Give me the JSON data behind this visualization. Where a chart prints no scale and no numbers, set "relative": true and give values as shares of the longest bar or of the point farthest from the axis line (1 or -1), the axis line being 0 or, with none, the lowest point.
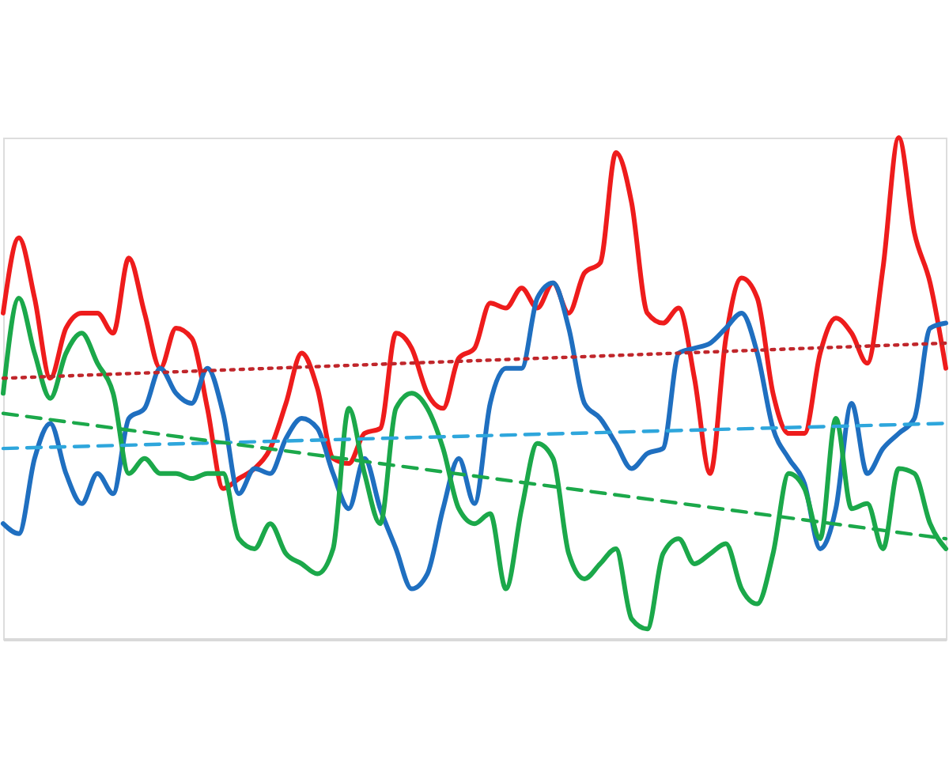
{
  "chart_data": {
    "type": "line",
    "relative": true,
    "line_style": "solid",
    "marker": "none",
    "grid": false,
    "categories": [
      null,
      null,
      null,
      null,
      null,
      null,
      null,
      null,
      null,
      null,
      null,
      null,
      null,
      null,
      null,
      null,
      null,
      null,
      null,
      null,
      null,
      null,
      null,
      null,
      null,
      null,
      null,
      null,
      null,
      null,
      null,
      null,
      null,
      null,
      null,
      null,
      null,
      null,
      null,
      null,
      null,
      null,
      null,
      null,
      null,
      null,
      null,
      null,
      null,
      null,
      null,
      null,
      null,
      null,
      null,
      null,
      null,
      null,
      null,
      null,
      null
    ],
    "series": [
      {
        "color": "#ee1c1c",
        "values": [
          0.65,
          0.8,
          0.68,
          0.52,
          0.62,
          0.65,
          0.65,
          0.61,
          0.76,
          0.65,
          0.54,
          0.62,
          0.6,
          0.46,
          0.3,
          0.32,
          0.34,
          0.38,
          0.47,
          0.57,
          0.5,
          0.36,
          0.35,
          0.41,
          0.42,
          0.61,
          0.58,
          0.49,
          0.46,
          0.56,
          0.58,
          0.67,
          0.66,
          0.7,
          0.66,
          0.71,
          0.65,
          0.73,
          0.75,
          0.97,
          0.87,
          0.65,
          0.63,
          0.66,
          0.52,
          0.33,
          0.6,
          0.72,
          0.68,
          0.49,
          0.41,
          0.41,
          0.57,
          0.64,
          0.61,
          0.55,
          0.74,
          1.0,
          0.81,
          0.71,
          0.54
        ]
      },
      {
        "color": "#1f6fc0",
        "values": [
          0.23,
          0.21,
          0.36,
          0.43,
          0.33,
          0.27,
          0.33,
          0.29,
          0.44,
          0.46,
          0.54,
          0.49,
          0.47,
          0.54,
          0.45,
          0.29,
          0.34,
          0.33,
          0.4,
          0.44,
          0.42,
          0.33,
          0.26,
          0.36,
          0.26,
          0.18,
          0.1,
          0.13,
          0.26,
          0.36,
          0.27,
          0.47,
          0.54,
          0.54,
          0.68,
          0.71,
          0.62,
          0.47,
          0.44,
          0.39,
          0.34,
          0.37,
          0.38,
          0.57,
          0.58,
          0.59,
          0.62,
          0.65,
          0.57,
          0.42,
          0.36,
          0.31,
          0.18,
          0.26,
          0.47,
          0.33,
          0.38,
          0.41,
          0.44,
          0.62,
          0.63
        ]
      },
      {
        "color": "#1ba84a",
        "values": [
          0.49,
          0.68,
          0.57,
          0.48,
          0.57,
          0.61,
          0.55,
          0.49,
          0.33,
          0.36,
          0.33,
          0.33,
          0.32,
          0.33,
          0.33,
          0.2,
          0.18,
          0.23,
          0.17,
          0.15,
          0.13,
          0.18,
          0.46,
          0.33,
          0.23,
          0.46,
          0.49,
          0.46,
          0.38,
          0.26,
          0.23,
          0.25,
          0.1,
          0.26,
          0.39,
          0.36,
          0.17,
          0.12,
          0.15,
          0.18,
          0.04,
          0.02,
          0.17,
          0.2,
          0.15,
          0.17,
          0.19,
          0.1,
          0.07,
          0.17,
          0.33,
          0.3,
          0.2,
          0.44,
          0.26,
          0.27,
          0.18,
          0.34,
          0.33,
          0.23,
          0.18
        ]
      },
      {
        "type": "line",
        "color": "#c0262b",
        "line_style": "dotted",
        "values": [
          0.52,
          null,
          null,
          null,
          null,
          null,
          null,
          null,
          null,
          null,
          null,
          null,
          null,
          null,
          null,
          null,
          null,
          null,
          null,
          null,
          null,
          null,
          null,
          null,
          null,
          null,
          null,
          null,
          null,
          null,
          null,
          null,
          null,
          null,
          null,
          null,
          null,
          null,
          null,
          null,
          null,
          null,
          null,
          null,
          null,
          null,
          null,
          null,
          null,
          null,
          null,
          null,
          null,
          null,
          null,
          null,
          null,
          null,
          null,
          null,
          0.59
        ]
      },
      {
        "type": "line",
        "color": "#2ea6dc",
        "line_style": "dashed",
        "values": [
          0.38,
          null,
          null,
          null,
          null,
          null,
          null,
          null,
          null,
          null,
          null,
          null,
          null,
          null,
          null,
          null,
          null,
          null,
          null,
          null,
          null,
          null,
          null,
          null,
          null,
          null,
          null,
          null,
          null,
          null,
          null,
          null,
          null,
          null,
          null,
          null,
          null,
          null,
          null,
          null,
          null,
          null,
          null,
          null,
          null,
          null,
          null,
          null,
          null,
          null,
          null,
          null,
          null,
          null,
          null,
          null,
          null,
          null,
          null,
          null,
          0.43
        ]
      },
      {
        "type": "line",
        "color": "#1ba84a",
        "line_style": "dashed",
        "values": [
          0.45,
          null,
          null,
          null,
          null,
          null,
          null,
          null,
          null,
          null,
          null,
          null,
          null,
          null,
          null,
          null,
          null,
          null,
          null,
          null,
          null,
          null,
          null,
          null,
          null,
          null,
          null,
          null,
          null,
          null,
          null,
          null,
          null,
          null,
          null,
          null,
          null,
          null,
          null,
          null,
          null,
          null,
          null,
          null,
          null,
          null,
          null,
          null,
          null,
          null,
          null,
          null,
          null,
          null,
          null,
          null,
          null,
          null,
          null,
          null,
          0.2
        ]
      }
    ]
  }
}
